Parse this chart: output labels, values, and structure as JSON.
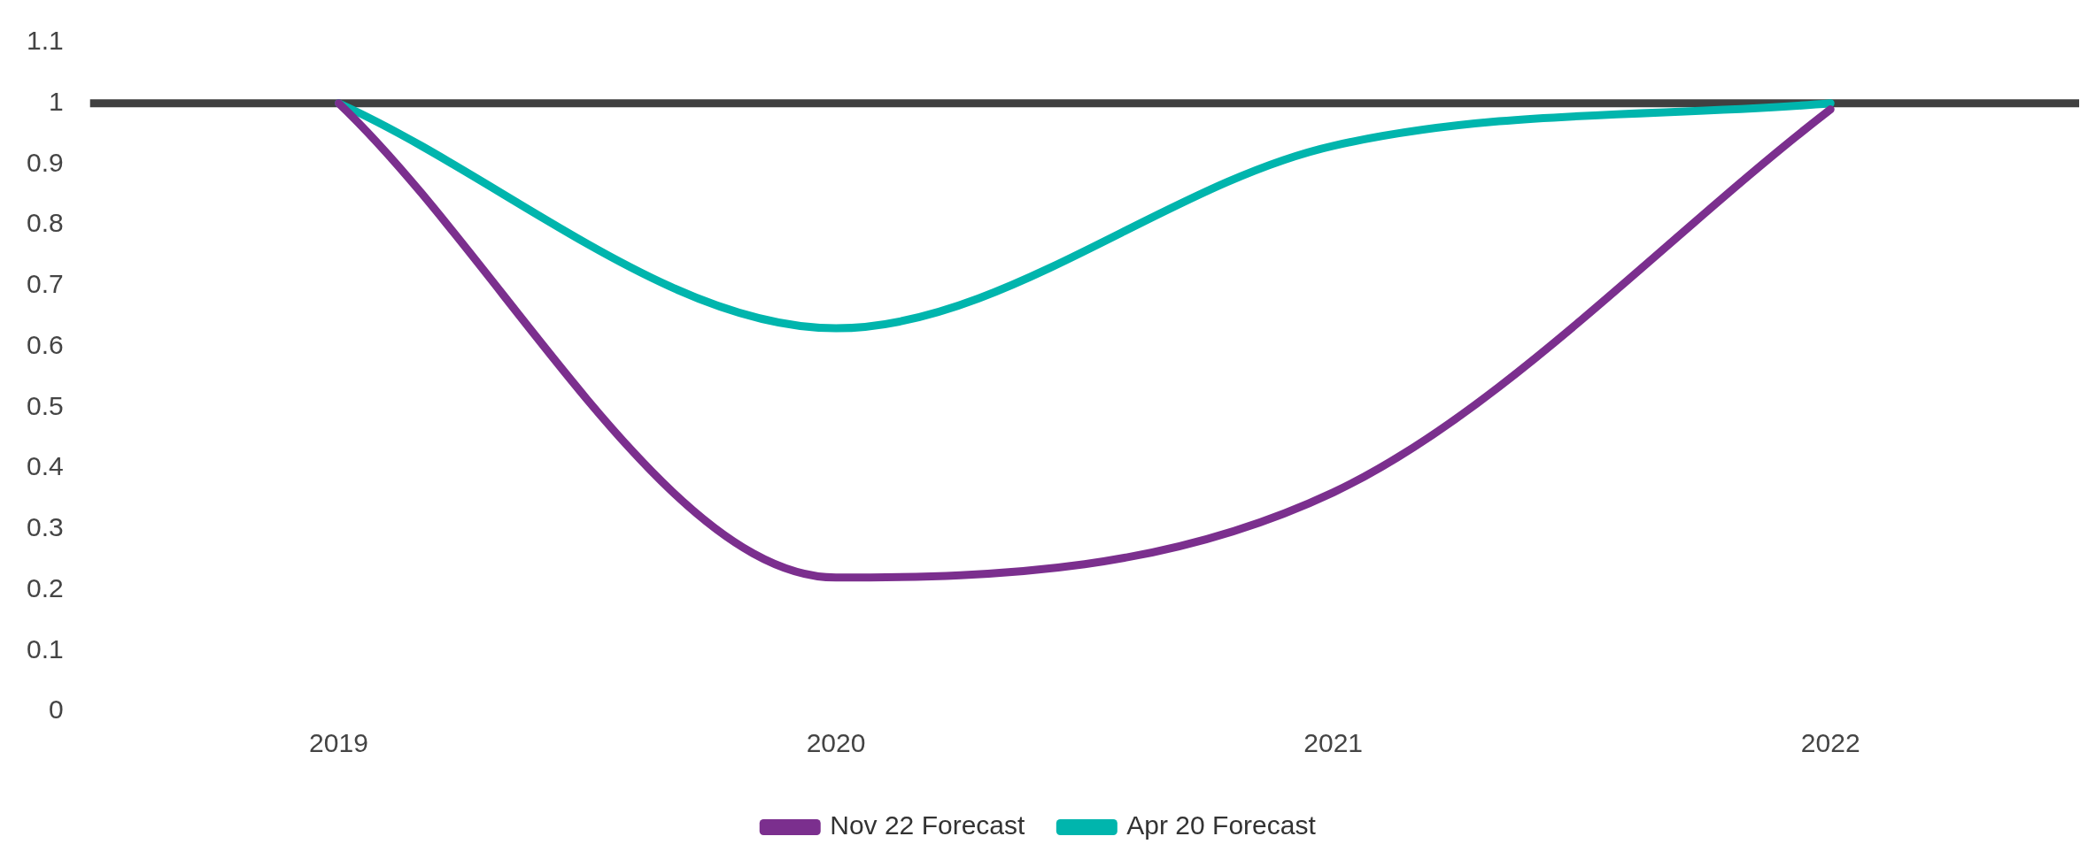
{
  "chart_data": {
    "type": "line",
    "categories": [
      "2019",
      "2020",
      "2021",
      "2022"
    ],
    "series": [
      {
        "name": "Nov 22 Forecast",
        "color": "#7b2f8e",
        "values": [
          1,
          0.22,
          0.36,
          0.99
        ]
      },
      {
        "name": "Apr 20 Forecast",
        "color": "#00b5ad",
        "values": [
          1,
          0.63,
          0.93,
          1.0
        ]
      }
    ],
    "ylim": [
      0,
      1.1
    ],
    "yticks": [
      0,
      0.1,
      0.2,
      0.3,
      0.4,
      0.5,
      0.6,
      0.7,
      0.8,
      0.9,
      1,
      1.1
    ],
    "ref_lines": [
      {
        "axis": "y",
        "value": 1,
        "color": "#404040"
      }
    ],
    "grid": false,
    "legend": "bottom",
    "marker": "none",
    "line_style": "solid"
  }
}
